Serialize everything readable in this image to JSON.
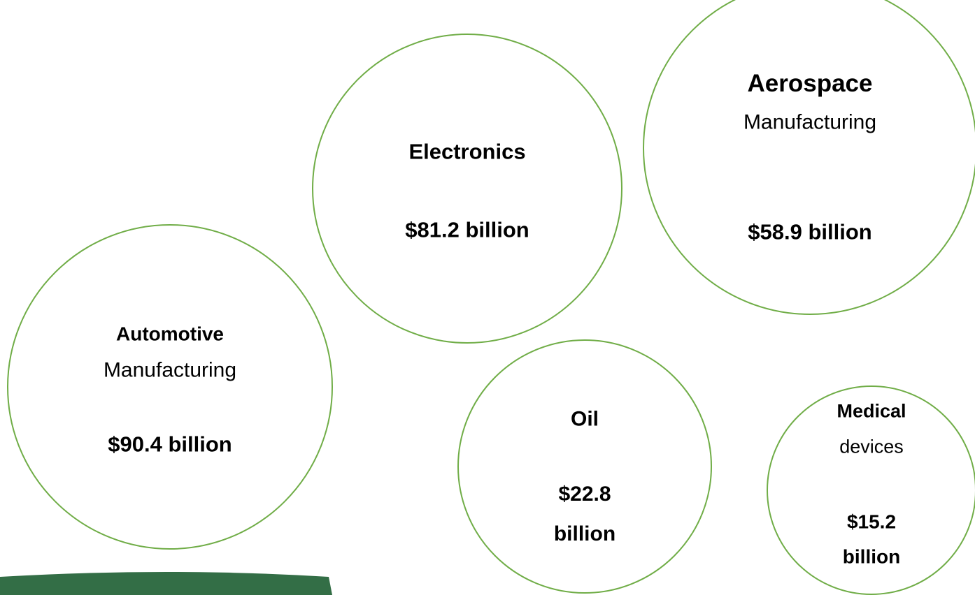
{
  "nodes": [
    {
      "title": "Electronics",
      "value": "$81.2 billion"
    },
    {
      "title": "Aerospace",
      "subtitle": "Manufacturing",
      "value": "$58.9 billion"
    },
    {
      "title": "Automotive",
      "subtitle": "Manufacturing",
      "value": "$90.4 billion"
    },
    {
      "title": "Oil",
      "value": "$22.8 billion"
    },
    {
      "title": "Medical",
      "subtitle": "devices",
      "value": "$15.2 billion"
    }
  ]
}
